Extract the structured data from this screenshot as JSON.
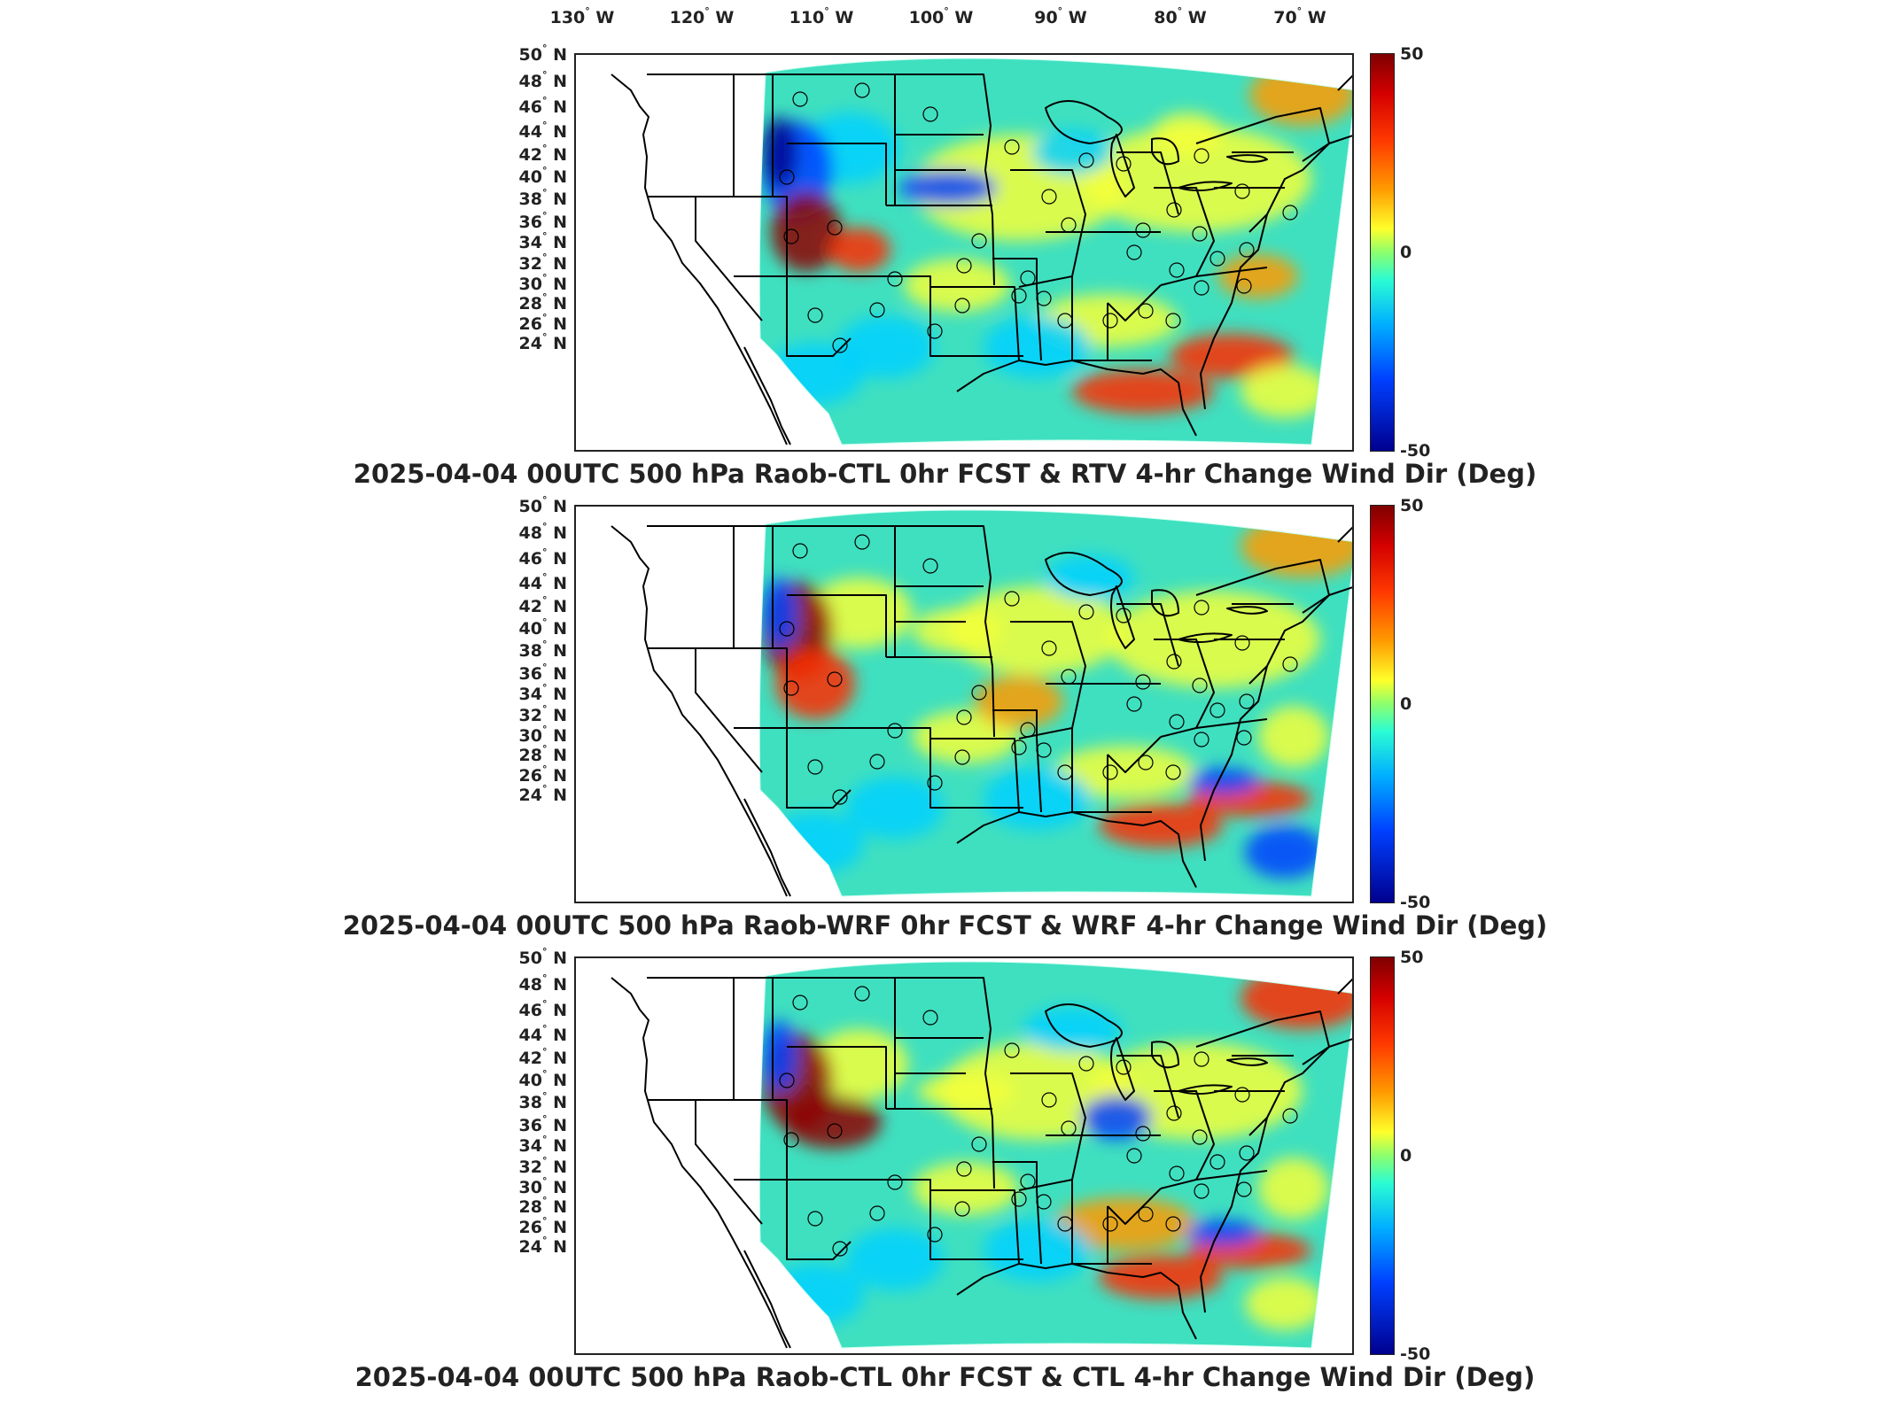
{
  "lon_axis": {
    "labels": [
      {
        "deg": "130",
        "dir": "W"
      },
      {
        "deg": "120",
        "dir": "W"
      },
      {
        "deg": "110",
        "dir": "W"
      },
      {
        "deg": "100",
        "dir": "W"
      },
      {
        "deg": "90",
        "dir": "W"
      },
      {
        "deg": "80",
        "dir": "W"
      },
      {
        "deg": "70",
        "dir": "W"
      }
    ]
  },
  "lat_axis": {
    "labels": [
      {
        "deg": "50",
        "dir": "N"
      },
      {
        "deg": "48",
        "dir": "N"
      },
      {
        "deg": "46",
        "dir": "N"
      },
      {
        "deg": "44",
        "dir": "N"
      },
      {
        "deg": "42",
        "dir": "N"
      },
      {
        "deg": "40",
        "dir": "N"
      },
      {
        "deg": "38",
        "dir": "N"
      },
      {
        "deg": "36",
        "dir": "N"
      },
      {
        "deg": "34",
        "dir": "N"
      },
      {
        "deg": "32",
        "dir": "N"
      },
      {
        "deg": "30",
        "dir": "N"
      },
      {
        "deg": "28",
        "dir": "N"
      },
      {
        "deg": "26",
        "dir": "N"
      },
      {
        "deg": "24",
        "dir": "N"
      }
    ]
  },
  "colorbar": {
    "max": "50",
    "mid": "0",
    "min": "-50"
  },
  "panels": [
    {
      "title": "2025-04-04 00UTC 500 hPa Raob-CTL 0hr FCST & RTV 4-hr Change Wind Dir (Deg)"
    },
    {
      "title": "2025-04-04 00UTC 500 hPa Raob-WRF 0hr FCST & WRF 4-hr Change Wind Dir (Deg)"
    },
    {
      "title": "2025-04-04 00UTC 500 hPa Raob-CTL 0hr FCST & CTL 4-hr Change Wind Dir (Deg)"
    }
  ],
  "colors": {
    "field_background": "#3fe0c0",
    "dark_red": "#8f0000",
    "red": "#ff2a00",
    "orange": "#ff9a00",
    "yellow": "#f4ff3a",
    "cyan": "#00d0ff",
    "blue": "#0040ff",
    "dark_blue": "#00008f"
  }
}
